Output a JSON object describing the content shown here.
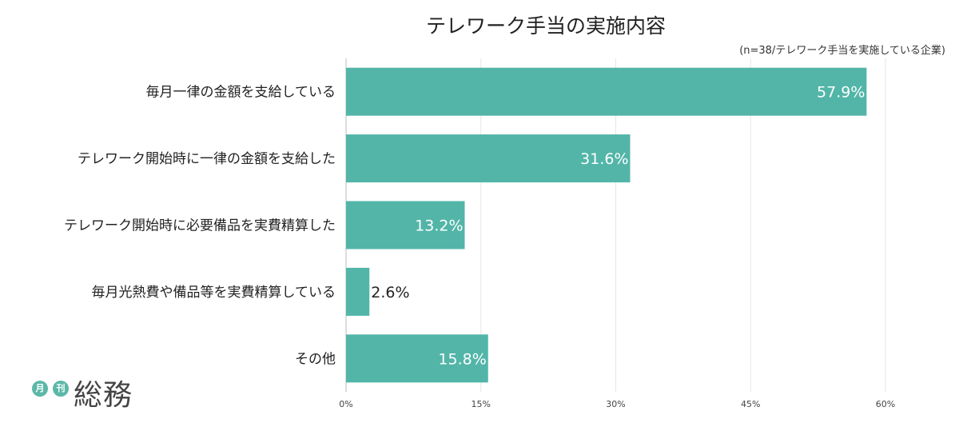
{
  "chart_data": {
    "type": "bar",
    "orientation": "horizontal",
    "title": "テレワーク手当の実施内容",
    "note": "(n=38/テレワーク手当を実施している企業)",
    "categories": [
      "毎月一律の金額を支給している",
      "テレワーク開始時に一律の金額を支給した",
      "テレワーク開始時に必要備品を実費精算した",
      "毎月光熱費や備品等を実費精算している",
      "その他"
    ],
    "values": [
      57.9,
      31.6,
      13.2,
      2.6,
      15.8
    ],
    "value_labels": [
      "57.9%",
      "31.6%",
      "13.2%",
      "2.6%",
      "15.8%"
    ],
    "xlim": [
      0,
      60
    ],
    "xticks": [
      "0%",
      "15%",
      "30%",
      "45%",
      "60%"
    ],
    "grid": true,
    "bar_color": "#52b5a8"
  },
  "logo": {
    "badge1": "月",
    "badge2": "刊",
    "word": "総務"
  }
}
